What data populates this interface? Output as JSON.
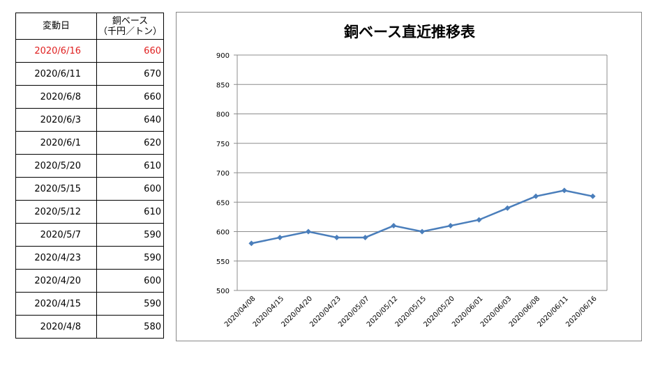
{
  "table": {
    "header": {
      "date": "変動日",
      "value_line1": "銅ベース",
      "value_line2": "（千円／トン）"
    },
    "highlight_color": "#e02020",
    "rows": [
      {
        "date": "2020/6/16",
        "value": "660"
      },
      {
        "date": "2020/6/11",
        "value": "670"
      },
      {
        "date": "2020/6/8",
        "value": "660"
      },
      {
        "date": "2020/6/3",
        "value": "640"
      },
      {
        "date": "2020/6/1",
        "value": "620"
      },
      {
        "date": "2020/5/20",
        "value": "610"
      },
      {
        "date": "2020/5/15",
        "value": "600"
      },
      {
        "date": "2020/5/12",
        "value": "610"
      },
      {
        "date": "2020/5/7",
        "value": "590"
      },
      {
        "date": "2020/4/23",
        "value": "590"
      },
      {
        "date": "2020/4/20",
        "value": "600"
      },
      {
        "date": "2020/4/15",
        "value": "590"
      },
      {
        "date": "2020/4/8",
        "value": "580"
      }
    ]
  },
  "chart_data": {
    "type": "line",
    "title": "銅ベース直近推移表",
    "xlabel": "",
    "ylabel": "",
    "categories": [
      "2020/04/08",
      "2020/04/15",
      "2020/04/20",
      "2020/04/23",
      "2020/05/07",
      "2020/05/12",
      "2020/05/15",
      "2020/05/20",
      "2020/06/01",
      "2020/06/03",
      "2020/06/08",
      "2020/06/11",
      "2020/06/16"
    ],
    "series": [
      {
        "values": [
          580,
          590,
          600,
          590,
          590,
          610,
          600,
          610,
          620,
          640,
          660,
          670,
          660
        ]
      }
    ],
    "ylim": [
      500,
      900
    ],
    "yticks": [
      500,
      550,
      600,
      650,
      700,
      750,
      800,
      850,
      900
    ],
    "grid": true,
    "legend": "none",
    "line_color": "#4a7ebb"
  }
}
